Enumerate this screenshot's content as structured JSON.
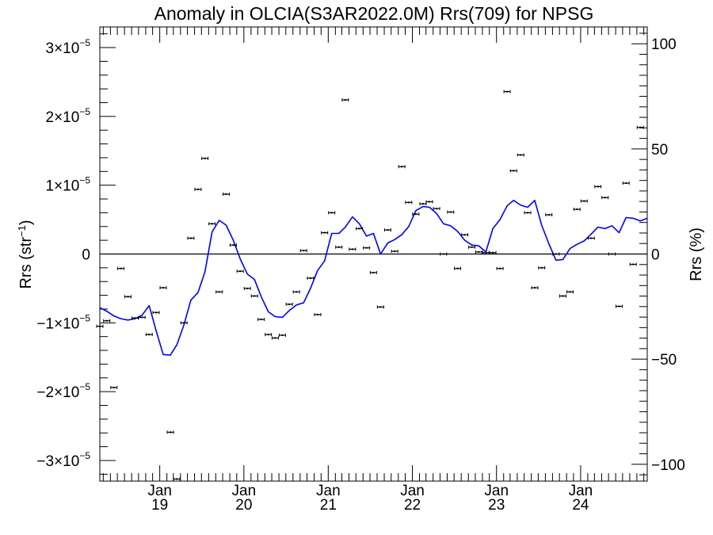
{
  "chart_data": {
    "type": "scatter",
    "title": "Anomaly in OLCIA(S3AR2022.0M) Rrs(709) for NPSG",
    "ylabel": "Rrs (str⁻¹)",
    "y2label": "Rrs (%)",
    "ylim": [
      -3.3e-05,
      3.3e-05
    ],
    "y2lim": [
      -108,
      108
    ],
    "xlim": [
      "2018-04-16",
      "2024-10-16"
    ],
    "left_ticks": [
      {
        "value": 3e-05,
        "mant": "3",
        "sign": "",
        "exp": "−5"
      },
      {
        "value": 2e-05,
        "mant": "2",
        "sign": "",
        "exp": "−5"
      },
      {
        "value": 1e-05,
        "mant": "1",
        "sign": "",
        "exp": "−5"
      },
      {
        "value": 0,
        "mant": "0",
        "sign": "",
        "exp": ""
      },
      {
        "value": -1e-05,
        "mant": "1",
        "sign": "−",
        "exp": "−5"
      },
      {
        "value": -2e-05,
        "mant": "2",
        "sign": "−",
        "exp": "−5"
      },
      {
        "value": -3e-05,
        "mant": "3",
        "sign": "−",
        "exp": "−5"
      }
    ],
    "right_ticks": [
      100,
      50,
      0,
      -50,
      -100
    ],
    "x_ticks": [
      {
        "date": "2019-01-01",
        "month": "Jan",
        "year": "19"
      },
      {
        "date": "2020-01-01",
        "month": "Jan",
        "year": "20"
      },
      {
        "date": "2021-01-01",
        "month": "Jan",
        "year": "21"
      },
      {
        "date": "2022-01-01",
        "month": "Jan",
        "year": "22"
      },
      {
        "date": "2023-01-01",
        "month": "Jan",
        "year": "23"
      },
      {
        "date": "2024-01-01",
        "month": "Jan",
        "year": "24"
      }
    ],
    "series": [
      {
        "color": "#000000",
        "marker": "point-with-error-bars",
        "points": [
          {
            "x": "2018-04-16",
            "y": -1.05e-05
          },
          {
            "x": "2018-05-16",
            "y": -9.7e-06
          },
          {
            "x": "2018-06-16",
            "y": -1.94e-05
          },
          {
            "x": "2018-07-16",
            "y": -2.1e-06
          },
          {
            "x": "2018-08-16",
            "y": -6.2e-06
          },
          {
            "x": "2018-09-16",
            "y": -9.3e-06
          },
          {
            "x": "2018-10-16",
            "y": -9.2e-06
          },
          {
            "x": "2018-11-16",
            "y": -1.17e-05
          },
          {
            "x": "2018-12-16",
            "y": -8.5e-06
          },
          {
            "x": "2019-01-16",
            "y": -4.9e-06
          },
          {
            "x": "2019-02-16",
            "y": -2.59e-05
          },
          {
            "x": "2019-03-16",
            "y": -3.27e-05
          },
          {
            "x": "2019-04-16",
            "y": -1e-05
          },
          {
            "x": "2019-05-16",
            "y": 2.3e-06
          },
          {
            "x": "2019-06-16",
            "y": 9.4e-06
          },
          {
            "x": "2019-07-16",
            "y": 1.39e-05
          },
          {
            "x": "2019-08-16",
            "y": 4.4e-06
          },
          {
            "x": "2019-09-16",
            "y": -5.5e-06
          },
          {
            "x": "2019-10-16",
            "y": 8.7e-06
          },
          {
            "x": "2019-11-16",
            "y": 1.3e-06
          },
          {
            "x": "2019-12-16",
            "y": -2.5e-06
          },
          {
            "x": "2020-01-16",
            "y": -5e-06
          },
          {
            "x": "2020-02-16",
            "y": -6.1e-06
          },
          {
            "x": "2020-03-16",
            "y": -9.5e-06
          },
          {
            "x": "2020-04-16",
            "y": -1.17e-05
          },
          {
            "x": "2020-05-16",
            "y": -1.22e-05
          },
          {
            "x": "2020-06-16",
            "y": -1.18e-05
          },
          {
            "x": "2020-07-16",
            "y": -7.3e-06
          },
          {
            "x": "2020-08-16",
            "y": -5.5e-06
          },
          {
            "x": "2020-09-16",
            "y": 5e-07
          },
          {
            "x": "2020-10-16",
            "y": -3.5e-06
          },
          {
            "x": "2020-11-16",
            "y": -8.8e-06
          },
          {
            "x": "2020-12-16",
            "y": 3.1e-06
          },
          {
            "x": "2021-01-16",
            "y": 6e-06
          },
          {
            "x": "2021-02-16",
            "y": 1e-06
          },
          {
            "x": "2021-03-16",
            "y": 2.24e-05
          },
          {
            "x": "2021-04-16",
            "y": 7e-07
          },
          {
            "x": "2021-05-16",
            "y": 3.7e-06
          },
          {
            "x": "2021-06-16",
            "y": 9e-07
          },
          {
            "x": "2021-07-16",
            "y": -2.7e-06
          },
          {
            "x": "2021-08-16",
            "y": -7.7e-06
          },
          {
            "x": "2021-09-16",
            "y": 3.5e-06
          },
          {
            "x": "2021-10-16",
            "y": 4e-07
          },
          {
            "x": "2021-11-16",
            "y": 1.27e-05
          },
          {
            "x": "2021-12-16",
            "y": 7.5e-06
          },
          {
            "x": "2022-01-16",
            "y": 5.8e-06
          },
          {
            "x": "2022-02-16",
            "y": 7.3e-06
          },
          {
            "x": "2022-03-16",
            "y": 7.6e-06
          },
          {
            "x": "2022-04-16",
            "y": 6.6e-06
          },
          {
            "x": "2022-05-16",
            "y": 0.0
          },
          {
            "x": "2022-06-16",
            "y": 6.1e-06
          },
          {
            "x": "2022-07-16",
            "y": -2.1e-06
          },
          {
            "x": "2022-08-16",
            "y": 2.8e-06
          },
          {
            "x": "2022-09-16",
            "y": 1e-06
          },
          {
            "x": "2022-10-16",
            "y": 3e-07
          },
          {
            "x": "2022-11-16",
            "y": 2e-07
          },
          {
            "x": "2022-12-16",
            "y": 2e-07
          },
          {
            "x": "2023-01-16",
            "y": -2.1e-06
          },
          {
            "x": "2023-02-16",
            "y": 2.36e-05
          },
          {
            "x": "2023-03-16",
            "y": 1.21e-05
          },
          {
            "x": "2023-04-16",
            "y": 1.44e-05
          },
          {
            "x": "2023-05-16",
            "y": 6e-06
          },
          {
            "x": "2023-06-16",
            "y": -4.9e-06
          },
          {
            "x": "2023-07-16",
            "y": -2e-06
          },
          {
            "x": "2023-08-16",
            "y": 5.7e-06
          },
          {
            "x": "2023-09-16",
            "y": 0.0
          },
          {
            "x": "2023-10-16",
            "y": -6.1e-06
          },
          {
            "x": "2023-11-16",
            "y": -5.5e-06
          },
          {
            "x": "2023-12-16",
            "y": 6.5e-06
          },
          {
            "x": "2024-01-16",
            "y": 7.7e-06
          },
          {
            "x": "2024-02-16",
            "y": 2.3e-06
          },
          {
            "x": "2024-03-16",
            "y": 9.8e-06
          },
          {
            "x": "2024-04-16",
            "y": 8.2e-06
          },
          {
            "x": "2024-05-16",
            "y": 0.0
          },
          {
            "x": "2024-06-16",
            "y": -7.6e-06
          },
          {
            "x": "2024-07-16",
            "y": 1.03e-05
          },
          {
            "x": "2024-08-16",
            "y": -1.5e-06
          },
          {
            "x": "2024-09-16",
            "y": 1.84e-05
          }
        ]
      },
      {
        "color": "#0000ff",
        "marker": "line",
        "points": [
          {
            "x": "2018-04-16",
            "y": -7.8e-06
          },
          {
            "x": "2018-05-16",
            "y": -8.3e-06
          },
          {
            "x": "2018-06-16",
            "y": -9e-06
          },
          {
            "x": "2018-07-16",
            "y": -9.4e-06
          },
          {
            "x": "2018-08-16",
            "y": -9.6e-06
          },
          {
            "x": "2018-09-16",
            "y": -9.4e-06
          },
          {
            "x": "2018-10-16",
            "y": -8.9e-06
          },
          {
            "x": "2018-11-16",
            "y": -7.5e-06
          },
          {
            "x": "2018-12-16",
            "y": -1.11e-05
          },
          {
            "x": "2019-01-16",
            "y": -1.46e-05
          },
          {
            "x": "2019-02-16",
            "y": -1.47e-05
          },
          {
            "x": "2019-03-16",
            "y": -1.32e-05
          },
          {
            "x": "2019-04-16",
            "y": -1.03e-05
          },
          {
            "x": "2019-05-16",
            "y": -6.7e-06
          },
          {
            "x": "2019-06-16",
            "y": -5.6e-06
          },
          {
            "x": "2019-07-16",
            "y": -2.6e-06
          },
          {
            "x": "2019-08-16",
            "y": 3.2e-06
          },
          {
            "x": "2019-09-16",
            "y": 4.9e-06
          },
          {
            "x": "2019-10-16",
            "y": 4.2e-06
          },
          {
            "x": "2019-11-16",
            "y": 2e-06
          },
          {
            "x": "2019-12-16",
            "y": -7e-07
          },
          {
            "x": "2020-01-16",
            "y": -2.9e-06
          },
          {
            "x": "2020-02-16",
            "y": -3.7e-06
          },
          {
            "x": "2020-03-16",
            "y": -6.2e-06
          },
          {
            "x": "2020-04-16",
            "y": -8.4e-06
          },
          {
            "x": "2020-05-16",
            "y": -9.1e-06
          },
          {
            "x": "2020-06-16",
            "y": -9.2e-06
          },
          {
            "x": "2020-07-16",
            "y": -8.2e-06
          },
          {
            "x": "2020-08-16",
            "y": -7.4e-06
          },
          {
            "x": "2020-09-16",
            "y": -7.1e-06
          },
          {
            "x": "2020-10-16",
            "y": -5e-06
          },
          {
            "x": "2020-11-16",
            "y": -2.4e-06
          },
          {
            "x": "2020-12-16",
            "y": -1e-06
          },
          {
            "x": "2021-01-16",
            "y": 3e-06
          },
          {
            "x": "2021-02-16",
            "y": 3e-06
          },
          {
            "x": "2021-03-16",
            "y": 3.9e-06
          },
          {
            "x": "2021-04-16",
            "y": 5.4e-06
          },
          {
            "x": "2021-05-16",
            "y": 4.4e-06
          },
          {
            "x": "2021-06-16",
            "y": 2.6e-06
          },
          {
            "x": "2021-07-16",
            "y": 3e-06
          },
          {
            "x": "2021-08-16",
            "y": 0.0
          },
          {
            "x": "2021-09-16",
            "y": 1.6e-06
          },
          {
            "x": "2021-10-16",
            "y": 2.1e-06
          },
          {
            "x": "2021-11-16",
            "y": 2.8e-06
          },
          {
            "x": "2021-12-16",
            "y": 4e-06
          },
          {
            "x": "2022-01-16",
            "y": 6.3e-06
          },
          {
            "x": "2022-02-16",
            "y": 6.9e-06
          },
          {
            "x": "2022-03-16",
            "y": 6.8e-06
          },
          {
            "x": "2022-04-16",
            "y": 5.9e-06
          },
          {
            "x": "2022-05-16",
            "y": 4.4e-06
          },
          {
            "x": "2022-06-16",
            "y": 4.1e-06
          },
          {
            "x": "2022-07-16",
            "y": 3.3e-06
          },
          {
            "x": "2022-08-16",
            "y": 2e-06
          },
          {
            "x": "2022-09-16",
            "y": 1.3e-06
          },
          {
            "x": "2022-10-16",
            "y": 1.2e-06
          },
          {
            "x": "2022-11-16",
            "y": 3e-07
          },
          {
            "x": "2022-12-16",
            "y": 3.7e-06
          },
          {
            "x": "2023-01-16",
            "y": 5e-06
          },
          {
            "x": "2023-02-16",
            "y": 7e-06
          },
          {
            "x": "2023-03-16",
            "y": 7.8e-06
          },
          {
            "x": "2023-04-16",
            "y": 7.1e-06
          },
          {
            "x": "2023-05-16",
            "y": 6.8e-06
          },
          {
            "x": "2023-06-16",
            "y": 7.8e-06
          },
          {
            "x": "2023-07-16",
            "y": 4.2e-06
          },
          {
            "x": "2023-08-16",
            "y": 1.5e-06
          },
          {
            "x": "2023-09-16",
            "y": -9e-07
          },
          {
            "x": "2023-10-16",
            "y": -8e-07
          },
          {
            "x": "2023-11-16",
            "y": 8e-07
          },
          {
            "x": "2023-12-16",
            "y": 1.4e-06
          },
          {
            "x": "2024-01-16",
            "y": 1.9e-06
          },
          {
            "x": "2024-02-16",
            "y": 2.9e-06
          },
          {
            "x": "2024-03-16",
            "y": 3.9e-06
          },
          {
            "x": "2024-04-16",
            "y": 3.7e-06
          },
          {
            "x": "2024-05-16",
            "y": 4.1e-06
          },
          {
            "x": "2024-06-16",
            "y": 3.1e-06
          },
          {
            "x": "2024-07-16",
            "y": 5.3e-06
          },
          {
            "x": "2024-08-16",
            "y": 5.2e-06
          },
          {
            "x": "2024-09-16",
            "y": 4.8e-06
          },
          {
            "x": "2024-10-16",
            "y": 5.2e-06
          }
        ]
      }
    ]
  }
}
